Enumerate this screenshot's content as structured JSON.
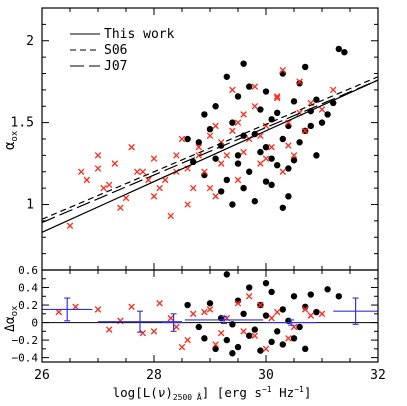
{
  "chart_data": [
    {
      "type": "scatter",
      "panel": "main",
      "xlabel": "log[L(ν)2500 Å] [erg s⁻¹ Hz⁻¹]",
      "xlabel_parts": {
        "pre": "log[L(",
        "nu": "ν",
        "post": ")",
        "sub": "2500 Å",
        "units": "] [erg s",
        "sup1": "−1",
        "hz": " Hz",
        "sup2": "−1",
        "end": "]"
      },
      "ylabel": "α_ox",
      "ylabel_parts": {
        "alpha": "α",
        "sub": "ox"
      },
      "xlim": [
        26,
        32
      ],
      "ylim": [
        0.6,
        2.2
      ],
      "xticks": [
        26,
        28,
        30,
        32
      ],
      "xtick_labels": [
        "26",
        "28",
        "30",
        "32"
      ],
      "yticks": [
        1,
        1.5,
        2
      ],
      "ytick_labels": [
        "1",
        "1.5",
        "2"
      ],
      "legend_position": "top-left",
      "lines": [
        {
          "name": "This work",
          "style": "solid",
          "x": [
            26,
            32
          ],
          "y": [
            0.83,
            1.76
          ]
        },
        {
          "name": "S06",
          "style": "dashed",
          "x": [
            26,
            32
          ],
          "y": [
            0.91,
            1.78
          ]
        },
        {
          "name": "J07",
          "style": "long-dashed",
          "x": [
            26,
            32
          ],
          "y": [
            0.89,
            1.76
          ]
        }
      ],
      "series": [
        {
          "name": "",
          "marker": "filled circle",
          "color": "#000000",
          "x": [
            29.3,
            29.7,
            30.0,
            30.3,
            30.6,
            30.9,
            31.2,
            31.4,
            28.9,
            29.1,
            29.5,
            29.9,
            30.2,
            30.5,
            30.8,
            29.0,
            29.4,
            29.8,
            30.1,
            30.4,
            30.7,
            28.6,
            28.8,
            29.2,
            29.6,
            30.0,
            30.3,
            30.6,
            31.0,
            28.7,
            29.1,
            29.5,
            29.9,
            30.2,
            30.5,
            28.9,
            29.3,
            29.7,
            30.0,
            30.4,
            29.2,
            29.6,
            30.1,
            30.4,
            29.4,
            29.8,
            30.3,
            30.9,
            31.1,
            29.6,
            30.7,
            31.3,
            30.1,
            29.5,
            30.8
          ],
          "y": [
            1.78,
            1.72,
            1.69,
            1.8,
            1.74,
            1.64,
            1.62,
            1.93,
            1.55,
            1.6,
            1.66,
            1.58,
            1.56,
            1.63,
            1.57,
            1.46,
            1.5,
            1.43,
            1.52,
            1.48,
            1.45,
            1.4,
            1.38,
            1.36,
            1.42,
            1.35,
            1.4,
            1.38,
            1.5,
            1.26,
            1.28,
            1.3,
            1.32,
            1.24,
            1.27,
            1.18,
            1.15,
            1.2,
            1.14,
            1.22,
            1.08,
            1.1,
            1.12,
            1.05,
            1.0,
            1.02,
            0.98,
            1.3,
            1.55,
            1.86,
            1.84,
            1.95,
            1.28,
            1.25,
            1.48
          ]
        },
        {
          "name": "",
          "marker": "x",
          "color": "#ff2a1a",
          "x": [
            26.5,
            26.7,
            27.0,
            27.1,
            27.3,
            27.5,
            27.7,
            27.9,
            28.0,
            28.2,
            28.4,
            28.6,
            28.8,
            29.0,
            29.2,
            29.4,
            29.6,
            29.8,
            30.0,
            30.2,
            30.4,
            30.6,
            30.8,
            31.0,
            31.2,
            26.8,
            27.2,
            27.6,
            28.1,
            28.5,
            28.9,
            29.3,
            29.7,
            30.1,
            30.5,
            27.4,
            27.8,
            28.3,
            28.7,
            29.1,
            29.5,
            29.9,
            30.3,
            30.7,
            28.0,
            28.4,
            28.8,
            29.2,
            29.6,
            30.0,
            30.4,
            29.0,
            29.4,
            29.8,
            30.2,
            30.6,
            27.0,
            28.6,
            29.1,
            29.5,
            29.9,
            30.3
          ],
          "y": [
            0.87,
            1.2,
            1.22,
            1.1,
            1.25,
            1.04,
            1.2,
            1.15,
            1.28,
            1.15,
            1.3,
            1.22,
            1.35,
            1.42,
            1.38,
            1.45,
            1.55,
            1.6,
            1.48,
            1.65,
            1.5,
            1.56,
            1.62,
            1.58,
            1.7,
            1.15,
            1.12,
            1.35,
            1.1,
            1.4,
            1.2,
            1.3,
            1.4,
            1.35,
            1.3,
            0.98,
            1.2,
            0.93,
            1.1,
            1.05,
            1.15,
            1.25,
            1.2,
            1.45,
            1.05,
            1.2,
            1.3,
            1.25,
            1.32,
            1.28,
            1.36,
            1.1,
            1.7,
            1.72,
            1.66,
            1.75,
            1.3,
            1.0,
            1.48,
            1.5,
            1.42,
            1.82
          ]
        }
      ]
    },
    {
      "type": "scatter",
      "panel": "residual",
      "ylabel": "Δα_ox",
      "ylabel_parts": {
        "delta": "Δα",
        "sub": "ox"
      },
      "xlim": [
        26,
        32
      ],
      "ylim": [
        -0.45,
        0.6
      ],
      "xticks": [
        26,
        28,
        30,
        32
      ],
      "yticks": [
        -0.4,
        -0.2,
        0,
        0.2,
        0.4,
        0.6
      ],
      "ytick_labels": [
        "−0.4",
        "−0.2",
        "0",
        "0.2",
        "0.4",
        "0.6"
      ],
      "zero_line": 0,
      "binned_means": {
        "color": "#3333dd",
        "x": [
          26.45,
          27.75,
          28.35,
          29.25,
          30.45,
          31.6
        ],
        "y": [
          0.15,
          0.01,
          0.0,
          0.03,
          0.0,
          0.13
        ],
        "x_err": [
          0.45,
          0.75,
          0.2,
          0.7,
          0.45,
          0.4
        ],
        "y_err": [
          0.13,
          0.12,
          0.1,
          0.04,
          0.03,
          0.15
        ]
      },
      "series": [
        {
          "name": "",
          "marker": "filled circle",
          "color": "#000000",
          "x": [
            29.3,
            29.7,
            30.1,
            30.5,
            30.8,
            31.1,
            29.0,
            29.5,
            29.9,
            30.3,
            30.7,
            29.2,
            29.6,
            30.0,
            30.4,
            30.9,
            28.8,
            29.4,
            29.8,
            30.2,
            30.6,
            28.9,
            29.3,
            29.7,
            30.1,
            30.5,
            29.1,
            29.5,
            29.9,
            30.3,
            31.3,
            28.6,
            30.7,
            29.4,
            30.0
          ],
          "y": [
            0.55,
            0.4,
            0.35,
            0.3,
            0.32,
            0.38,
            0.22,
            0.25,
            0.2,
            0.15,
            0.18,
            0.05,
            0.1,
            0.08,
            0.02,
            0.12,
            -0.05,
            -0.02,
            -0.08,
            -0.1,
            -0.05,
            -0.18,
            -0.2,
            -0.15,
            -0.22,
            -0.18,
            -0.3,
            -0.28,
            -0.32,
            -0.25,
            0.3,
            0.2,
            -0.3,
            -0.35,
            0.45
          ]
        },
        {
          "name": "",
          "marker": "x",
          "color": "#ff2a1a",
          "x": [
            26.3,
            26.6,
            27.0,
            27.4,
            27.8,
            28.1,
            28.4,
            28.7,
            29.0,
            29.3,
            29.6,
            29.9,
            30.2,
            30.5,
            30.8,
            31.0,
            27.2,
            27.6,
            28.0,
            28.3,
            28.6,
            28.9,
            29.2,
            29.5,
            29.8,
            30.1,
            30.4,
            30.7,
            29.1,
            29.7,
            28.5,
            30.0
          ],
          "y": [
            0.12,
            0.18,
            0.15,
            0.02,
            -0.12,
            0.22,
            -0.05,
            0.1,
            0.15,
            0.05,
            -0.1,
            0.2,
            0.12,
            -0.05,
            0.08,
            0.1,
            -0.08,
            0.18,
            -0.1,
            0.05,
            -0.2,
            0.12,
            -0.12,
            0.22,
            -0.15,
            0.05,
            -0.18,
            0.15,
            -0.25,
            0.3,
            -0.28,
            -0.3
          ]
        }
      ]
    }
  ]
}
